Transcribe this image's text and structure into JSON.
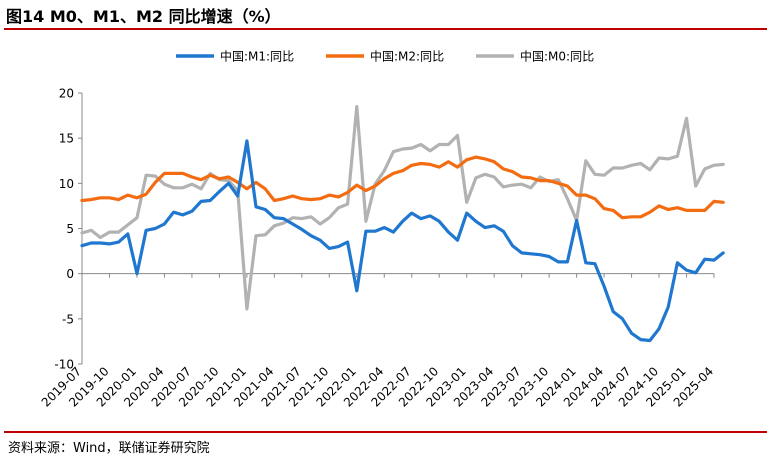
{
  "title": "图14 M0、M1、M2 同比增速（%）",
  "source": "资料来源：Wind，联储证券研究院",
  "colors": {
    "m1": "#1f77d0",
    "m2": "#f36c12",
    "m0": "#b2b2b2",
    "accent": "#c00000"
  },
  "chart_data": {
    "type": "line",
    "title": "",
    "xlabel": "",
    "ylabel": "",
    "ylim": [
      -10,
      20
    ],
    "yticks": [
      -10,
      -5,
      0,
      5,
      10,
      15,
      20
    ],
    "grid": false,
    "legend_position": "top",
    "xtick_labels": [
      "2019-07",
      "2019-10",
      "2020-01",
      "2020-04",
      "2020-07",
      "2020-10",
      "2021-01",
      "2021-04",
      "2021-07",
      "2021-10",
      "2022-01",
      "2022-04",
      "2022-07",
      "2022-10",
      "2023-01",
      "2023-04",
      "2023-07",
      "2023-10",
      "2024-01",
      "2024-04",
      "2024-07",
      "2024-10",
      "2025-01",
      "2025-04"
    ],
    "x": [
      "2019-07",
      "2019-08",
      "2019-09",
      "2019-10",
      "2019-11",
      "2019-12",
      "2020-01",
      "2020-02",
      "2020-03",
      "2020-04",
      "2020-05",
      "2020-06",
      "2020-07",
      "2020-08",
      "2020-09",
      "2020-10",
      "2020-11",
      "2020-12",
      "2021-01",
      "2021-02",
      "2021-03",
      "2021-04",
      "2021-05",
      "2021-06",
      "2021-07",
      "2021-08",
      "2021-09",
      "2021-10",
      "2021-11",
      "2021-12",
      "2022-01",
      "2022-02",
      "2022-03",
      "2022-04",
      "2022-05",
      "2022-06",
      "2022-07",
      "2022-08",
      "2022-09",
      "2022-10",
      "2022-11",
      "2022-12",
      "2023-01",
      "2023-02",
      "2023-03",
      "2023-04",
      "2023-05",
      "2023-06",
      "2023-07",
      "2023-08",
      "2023-09",
      "2023-10",
      "2023-11",
      "2023-12",
      "2024-01",
      "2024-02",
      "2024-03",
      "2024-04",
      "2024-05",
      "2024-06",
      "2024-07",
      "2024-08",
      "2024-09",
      "2024-10",
      "2024-11",
      "2024-12",
      "2025-01",
      "2025-02",
      "2025-03",
      "2025-04",
      "2025-05"
    ],
    "series": [
      {
        "name": "中国:M1:同比",
        "color": "#1f77d0",
        "values": [
          3.1,
          3.4,
          3.4,
          3.3,
          3.5,
          4.4,
          0.0,
          4.8,
          5.0,
          5.5,
          6.8,
          6.5,
          6.9,
          8.0,
          8.1,
          9.1,
          10.0,
          8.6,
          14.7,
          7.4,
          7.1,
          6.2,
          6.1,
          5.5,
          4.9,
          4.2,
          3.7,
          2.8,
          3.0,
          3.5,
          -1.9,
          4.7,
          4.7,
          5.1,
          4.6,
          5.8,
          6.7,
          6.1,
          6.4,
          5.8,
          4.6,
          3.7,
          6.7,
          5.8,
          5.1,
          5.3,
          4.7,
          3.1,
          2.3,
          2.2,
          2.1,
          1.9,
          1.3,
          1.3,
          5.9,
          1.2,
          1.1,
          -1.4,
          -4.2,
          -5.0,
          -6.6,
          -7.3,
          -7.4,
          -6.1,
          -3.7,
          1.2,
          0.4,
          0.1,
          1.6,
          1.5,
          2.3
        ]
      },
      {
        "name": "中国:M2:同比",
        "color": "#f36c12",
        "values": [
          8.1,
          8.2,
          8.4,
          8.4,
          8.2,
          8.7,
          8.4,
          8.8,
          10.1,
          11.1,
          11.1,
          11.1,
          10.7,
          10.4,
          10.9,
          10.5,
          10.7,
          10.1,
          9.4,
          10.1,
          9.4,
          8.1,
          8.3,
          8.6,
          8.3,
          8.2,
          8.3,
          8.7,
          8.5,
          9.0,
          9.8,
          9.2,
          9.7,
          10.5,
          11.1,
          11.4,
          12.0,
          12.2,
          12.1,
          11.8,
          12.4,
          11.8,
          12.6,
          12.9,
          12.7,
          12.4,
          11.6,
          11.3,
          10.7,
          10.6,
          10.3,
          10.3,
          10.0,
          9.7,
          8.7,
          8.7,
          8.3,
          7.2,
          7.0,
          6.2,
          6.3,
          6.3,
          6.8,
          7.5,
          7.1,
          7.3,
          7.0,
          7.0,
          7.0,
          8.0,
          7.9
        ]
      },
      {
        "name": "中国:M0:同比",
        "color": "#b2b2b2",
        "values": [
          4.5,
          4.8,
          4.0,
          4.6,
          4.6,
          5.4,
          6.2,
          10.9,
          10.8,
          9.9,
          9.5,
          9.5,
          9.9,
          9.4,
          11.1,
          10.4,
          10.3,
          9.2,
          -3.9,
          4.2,
          4.3,
          5.3,
          5.6,
          6.2,
          6.1,
          6.3,
          5.5,
          6.2,
          7.3,
          7.7,
          18.5,
          5.8,
          9.9,
          11.4,
          13.5,
          13.8,
          13.9,
          14.3,
          13.6,
          14.3,
          14.3,
          15.3,
          7.9,
          10.6,
          11.0,
          10.7,
          9.6,
          9.8,
          9.9,
          9.5,
          10.7,
          10.2,
          10.4,
          8.3,
          5.9,
          12.5,
          11.0,
          10.9,
          11.7,
          11.7,
          12.0,
          12.2,
          11.5,
          12.8,
          12.7,
          13.0,
          17.2,
          9.7,
          11.6,
          12.0,
          12.1
        ]
      }
    ]
  }
}
